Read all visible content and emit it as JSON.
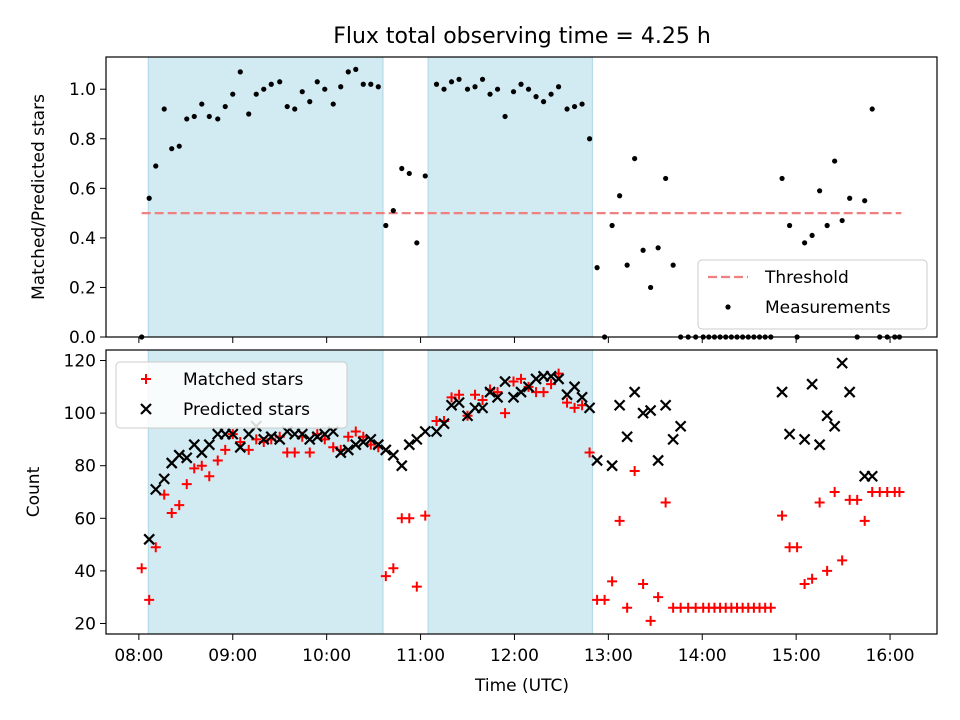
{
  "chart_data": {
    "type": "scatter",
    "title": "Flux total observing time = 4.25 h",
    "xlabel": "Time (UTC)",
    "x_unit": "hours UTC",
    "xlim": [
      7.65,
      16.5
    ],
    "x_ticks": [
      8,
      9,
      10,
      11,
      12,
      13,
      14,
      15,
      16
    ],
    "x_tick_labels": [
      "08:00",
      "09:00",
      "10:00",
      "11:00",
      "12:00",
      "13:00",
      "14:00",
      "15:00",
      "16:00"
    ],
    "shaded_intervals": [
      [
        8.1,
        10.6
      ],
      [
        11.08,
        12.83
      ]
    ],
    "shade_color": "#add8e6",
    "top": {
      "ylabel": "Matched/Predicted stars",
      "ylim": [
        0,
        1.13
      ],
      "y_ticks": [
        0.0,
        0.2,
        0.4,
        0.6,
        0.8,
        1.0
      ],
      "y_tick_labels": [
        "0.0",
        "0.2",
        "0.4",
        "0.6",
        "0.8",
        "1.0"
      ],
      "threshold": {
        "name": "Threshold",
        "y": 0.5,
        "x_range": [
          8.03,
          16.12
        ],
        "color": "#f08080"
      },
      "measurements": {
        "name": "Measurements",
        "color": "#000000",
        "x": [
          8.03,
          8.11,
          8.18,
          8.27,
          8.35,
          8.43,
          8.51,
          8.59,
          8.67,
          8.75,
          8.84,
          8.92,
          9.0,
          9.08,
          9.17,
          9.25,
          9.33,
          9.41,
          9.5,
          9.58,
          9.66,
          9.74,
          9.82,
          9.9,
          9.98,
          10.07,
          10.15,
          10.23,
          10.31,
          10.39,
          10.47,
          10.55,
          10.63,
          10.71,
          10.8,
          10.88,
          10.96,
          11.05,
          11.17,
          11.25,
          11.33,
          11.41,
          11.5,
          11.58,
          11.66,
          11.74,
          11.82,
          11.9,
          11.99,
          12.07,
          12.15,
          12.23,
          12.31,
          12.39,
          12.47,
          12.56,
          12.64,
          12.72,
          12.8,
          12.88,
          12.96,
          13.04,
          13.12,
          13.2,
          13.28,
          13.37,
          13.45,
          13.53,
          13.61,
          13.69,
          13.77,
          13.85,
          13.93,
          14.01,
          14.07,
          14.13,
          14.19,
          14.25,
          14.31,
          14.37,
          14.43,
          14.49,
          14.55,
          14.61,
          14.67,
          14.73,
          14.85,
          14.93,
          15.01,
          15.09,
          15.17,
          15.25,
          15.33,
          15.41,
          15.49,
          15.57,
          15.65,
          15.73,
          15.81,
          15.89,
          15.97,
          16.05,
          16.1
        ],
        "y": [
          0.0,
          0.56,
          0.69,
          0.92,
          0.76,
          0.77,
          0.88,
          0.89,
          0.94,
          0.89,
          0.88,
          0.93,
          0.98,
          1.07,
          0.9,
          0.98,
          1.0,
          1.02,
          1.03,
          0.93,
          0.92,
          0.99,
          0.95,
          1.03,
          1.0,
          0.94,
          1.01,
          1.07,
          1.08,
          1.02,
          1.02,
          1.01,
          0.45,
          0.51,
          0.68,
          0.66,
          0.38,
          0.65,
          1.02,
          1.0,
          1.03,
          1.04,
          1.0,
          1.01,
          1.04,
          0.98,
          1.0,
          0.89,
          0.99,
          1.02,
          1.0,
          0.97,
          0.95,
          0.98,
          1.01,
          0.92,
          0.93,
          0.94,
          0.8,
          0.28,
          0.0,
          0.45,
          0.57,
          0.29,
          0.72,
          0.35,
          0.2,
          0.36,
          0.64,
          0.29,
          0.0,
          0.0,
          0.0,
          0.0,
          0.0,
          0.0,
          0.0,
          0.0,
          0.0,
          0.0,
          0.0,
          0.0,
          0.0,
          0.0,
          0.0,
          0.0,
          0.64,
          0.45,
          0.0,
          0.38,
          0.41,
          0.59,
          0.45,
          0.71,
          0.47,
          0.56,
          0.0,
          0.55,
          0.92,
          0.0,
          0.0,
          0.0,
          0.0
        ]
      }
    },
    "bottom": {
      "ylabel": "Count",
      "ylim": [
        16,
        124
      ],
      "y_ticks": [
        20,
        40,
        60,
        80,
        100,
        120
      ],
      "y_tick_labels": [
        "20",
        "40",
        "60",
        "80",
        "100",
        "120"
      ],
      "series": [
        {
          "name": "Matched stars",
          "marker": "+",
          "color": "#ff0000",
          "x": [
            8.03,
            8.11,
            8.18,
            8.27,
            8.35,
            8.43,
            8.51,
            8.59,
            8.67,
            8.75,
            8.84,
            8.92,
            9.0,
            9.08,
            9.17,
            9.25,
            9.33,
            9.41,
            9.5,
            9.58,
            9.66,
            9.74,
            9.82,
            9.9,
            9.98,
            10.07,
            10.15,
            10.23,
            10.31,
            10.39,
            10.47,
            10.55,
            10.63,
            10.71,
            10.8,
            10.88,
            10.96,
            11.05,
            11.17,
            11.25,
            11.33,
            11.41,
            11.5,
            11.58,
            11.66,
            11.74,
            11.82,
            11.9,
            11.99,
            12.07,
            12.15,
            12.23,
            12.31,
            12.39,
            12.47,
            12.56,
            12.64,
            12.72,
            12.8,
            12.88,
            12.96,
            13.04,
            13.12,
            13.2,
            13.28,
            13.37,
            13.45,
            13.53,
            13.61,
            13.69,
            13.77,
            13.85,
            13.93,
            14.01,
            14.07,
            14.13,
            14.19,
            14.25,
            14.31,
            14.37,
            14.43,
            14.49,
            14.55,
            14.61,
            14.67,
            14.73,
            14.85,
            14.93,
            15.01,
            15.09,
            15.17,
            15.25,
            15.33,
            15.41,
            15.49,
            15.57,
            15.65,
            15.73,
            15.81,
            15.89,
            15.97,
            16.05,
            16.1
          ],
          "y": [
            41,
            29,
            49,
            69,
            62,
            65,
            73,
            79,
            80,
            76,
            82,
            86,
            92,
            89,
            86,
            90,
            89,
            90,
            91,
            85,
            85,
            91,
            85,
            92,
            90,
            87,
            86,
            91,
            93,
            91,
            88,
            87,
            38,
            41,
            60,
            60,
            34,
            61,
            97,
            97,
            106,
            107,
            99,
            107,
            105,
            109,
            108,
            100,
            112,
            113,
            110,
            108,
            108,
            111,
            115,
            104,
            102,
            103,
            85,
            29,
            29,
            36,
            59,
            26,
            78,
            35,
            21,
            30,
            66,
            26,
            26,
            26,
            26,
            26,
            26,
            26,
            26,
            26,
            26,
            26,
            26,
            26,
            26,
            26,
            26,
            26,
            61,
            49,
            49,
            35,
            37,
            66,
            40,
            70,
            44,
            67,
            67,
            59,
            70,
            70,
            70,
            70,
            70
          ]
        },
        {
          "name": "Predicted stars",
          "marker": "x",
          "color": "#000000",
          "x": [
            8.11,
            8.18,
            8.27,
            8.35,
            8.43,
            8.51,
            8.59,
            8.67,
            8.75,
            8.84,
            8.92,
            9.0,
            9.08,
            9.17,
            9.25,
            9.33,
            9.41,
            9.5,
            9.58,
            9.66,
            9.74,
            9.82,
            9.9,
            9.98,
            10.07,
            10.15,
            10.23,
            10.31,
            10.39,
            10.47,
            10.55,
            10.63,
            10.71,
            10.8,
            10.88,
            10.96,
            11.05,
            11.17,
            11.25,
            11.33,
            11.41,
            11.5,
            11.58,
            11.66,
            11.74,
            11.82,
            11.9,
            11.99,
            12.07,
            12.15,
            12.23,
            12.31,
            12.39,
            12.47,
            12.56,
            12.64,
            12.72,
            12.8,
            12.88,
            13.04,
            13.12,
            13.2,
            13.28,
            13.37,
            13.45,
            13.53,
            13.61,
            13.69,
            13.77,
            14.85,
            14.93,
            15.09,
            15.17,
            15.25,
            15.33,
            15.41,
            15.49,
            15.57,
            15.73,
            15.81
          ],
          "y": [
            52,
            71,
            75,
            81,
            84,
            83,
            88,
            85,
            88,
            92,
            92,
            92,
            87,
            92,
            95,
            90,
            91,
            90,
            93,
            92,
            92,
            90,
            91,
            92,
            93,
            85,
            86,
            88,
            89,
            90,
            88,
            86,
            84,
            80,
            88,
            90,
            93,
            93,
            96,
            103,
            104,
            99,
            102,
            102,
            108,
            106,
            112,
            106,
            108,
            110,
            113,
            114,
            114,
            113,
            107,
            110,
            106,
            102,
            82,
            80,
            103,
            91,
            108,
            100,
            101,
            82,
            103,
            90,
            95,
            108,
            92,
            90,
            111,
            88,
            99,
            95,
            119,
            108,
            76,
            76
          ]
        }
      ]
    }
  }
}
